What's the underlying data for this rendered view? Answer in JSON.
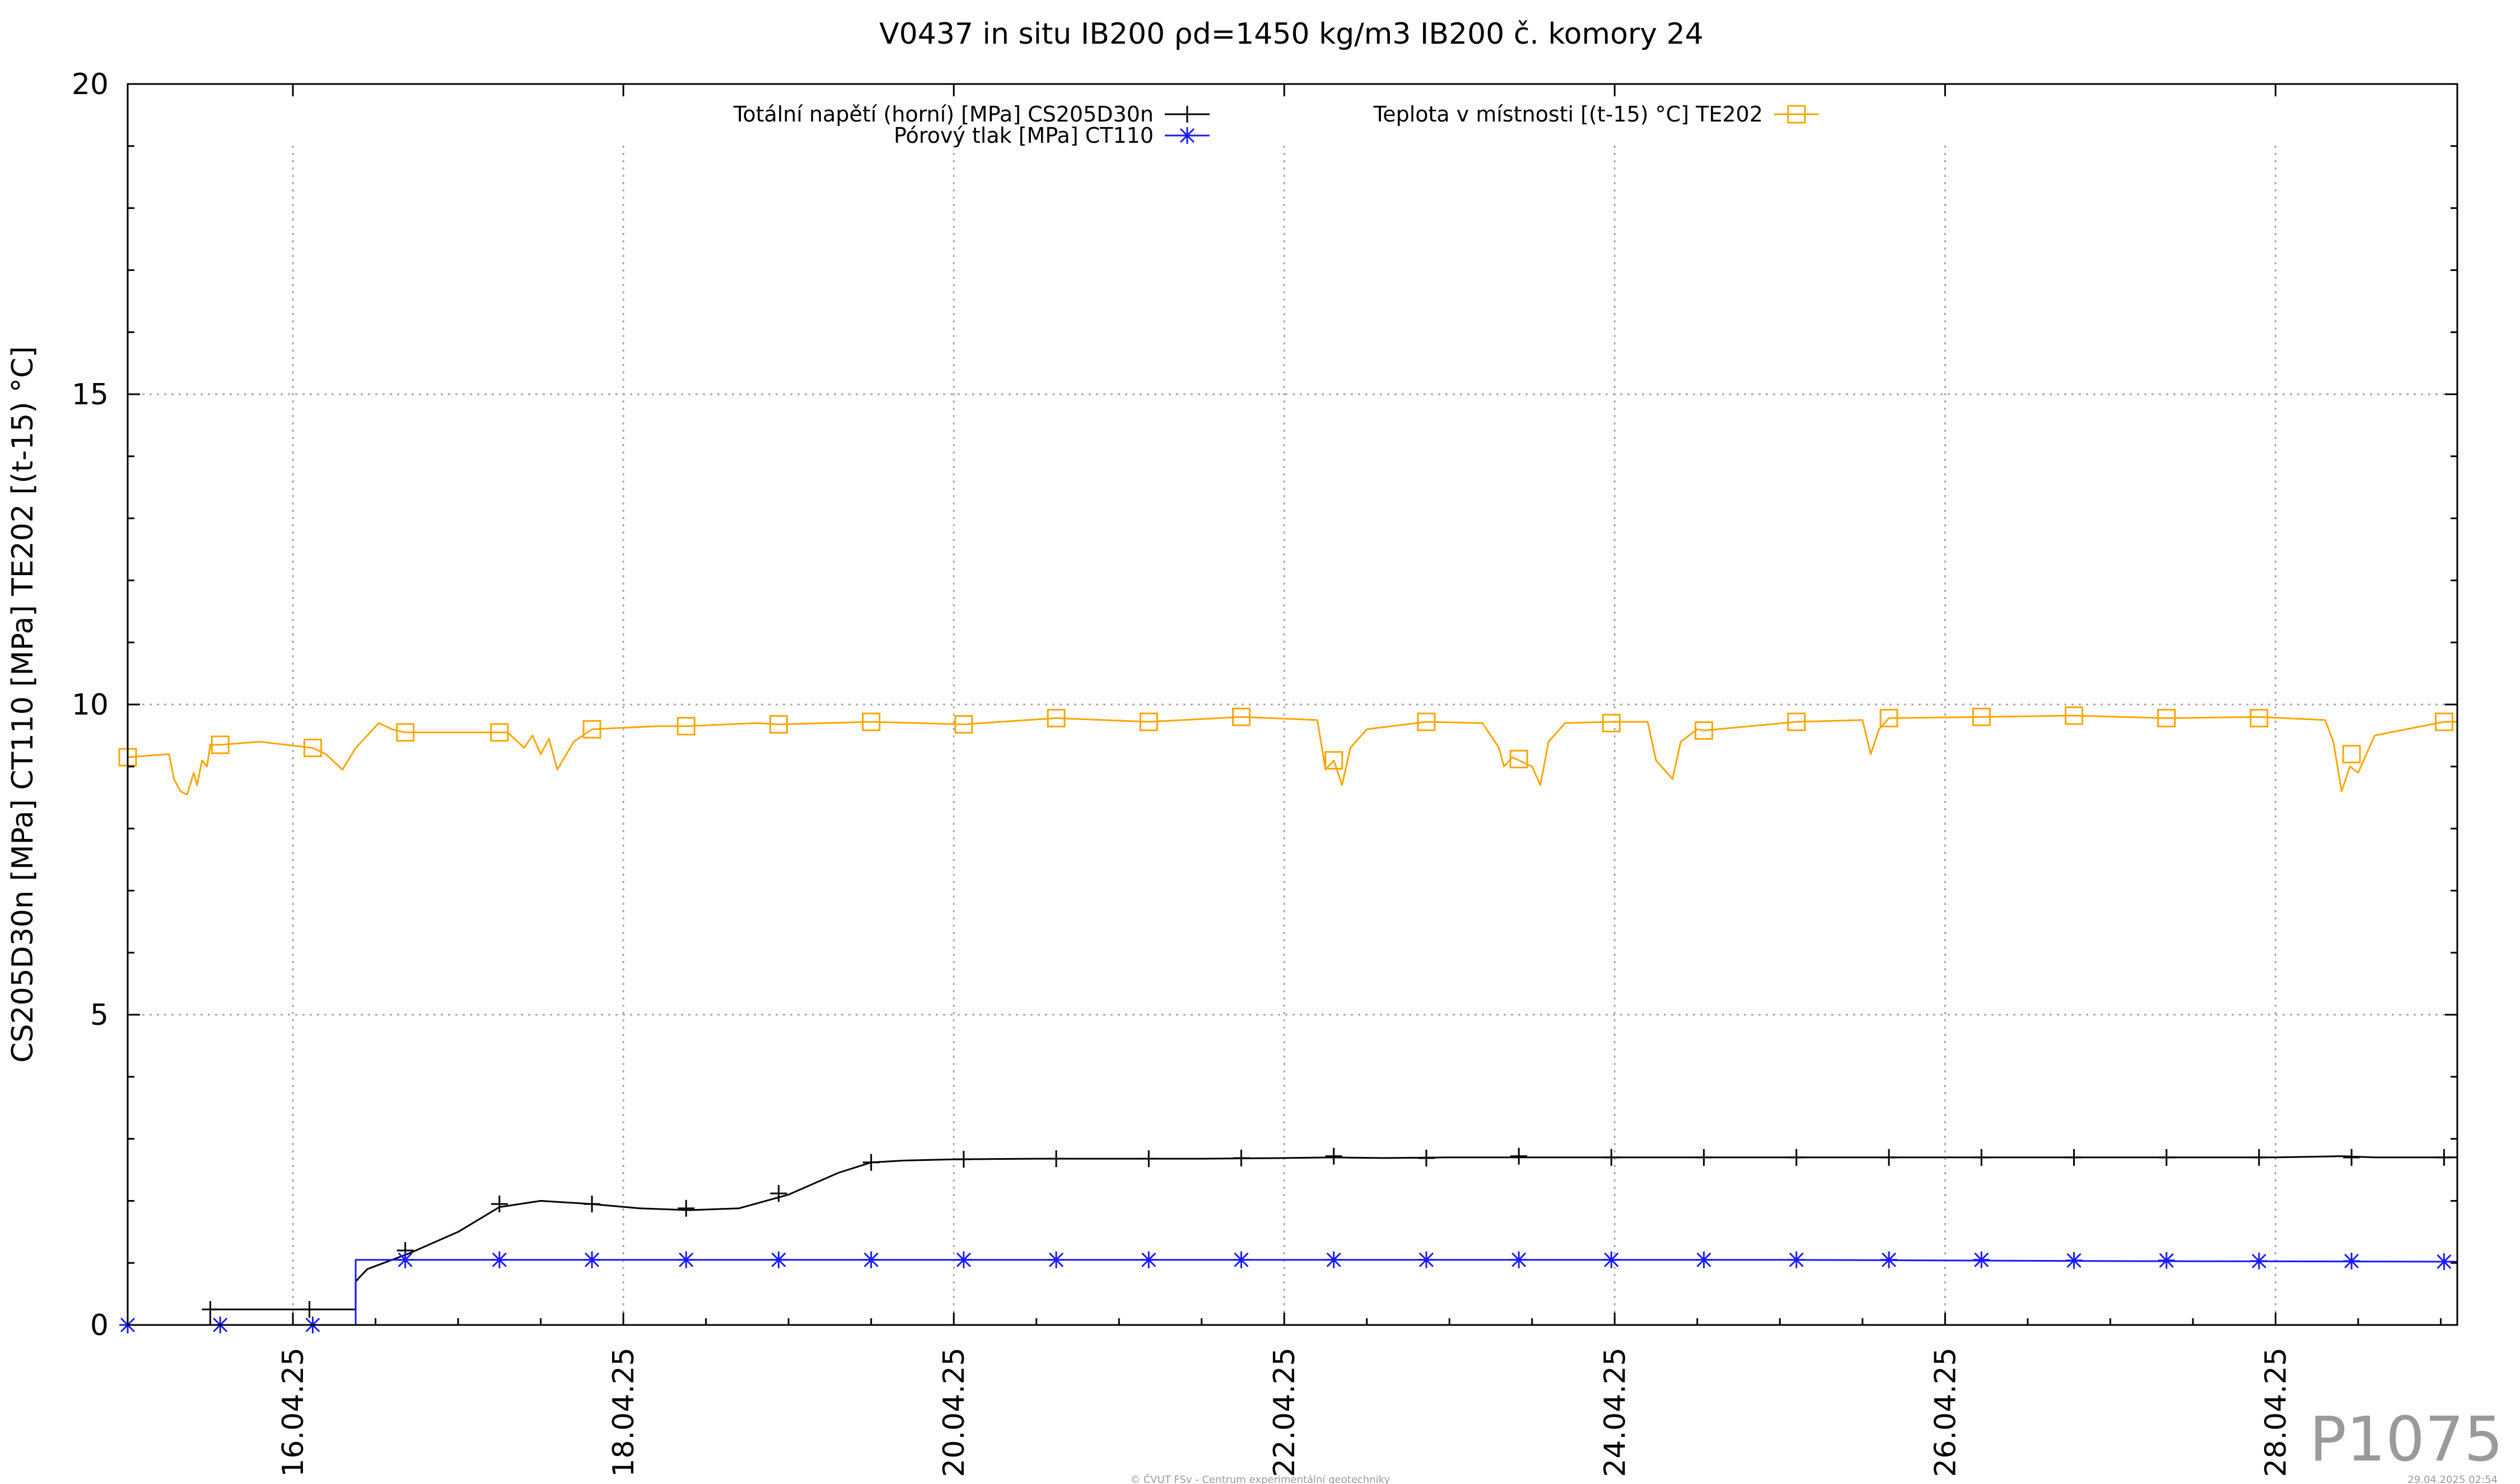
{
  "chart_data": {
    "type": "line",
    "title": "V0437 in situ IB200 ρd=1450 kg/m3 IB200 č. komory 24",
    "ylabel": "CS205D30n [MPa] CT110 [MPa] TE202 [(t-15) °C]",
    "xlabel": "",
    "ylim": [
      0,
      20
    ],
    "xlim": [
      0,
      14.1
    ],
    "y_ticks": [
      0,
      5,
      10,
      15,
      20
    ],
    "x_ticks": [
      {
        "x": 1.0,
        "label": "16.04.25"
      },
      {
        "x": 3.0,
        "label": "18.04.25"
      },
      {
        "x": 5.0,
        "label": "20.04.25"
      },
      {
        "x": 7.0,
        "label": "22.04.25"
      },
      {
        "x": 9.0,
        "label": "24.04.25"
      },
      {
        "x": 11.0,
        "label": "26.04.25"
      },
      {
        "x": 13.0,
        "label": "28.04.25"
      }
    ],
    "grid": true,
    "legend_position": "top",
    "series": [
      {
        "name": "Totální napětí (horní) [MPa] CS205D30n",
        "color": "#000000",
        "marker": "plus",
        "x": [
          0,
          0.5,
          0.5,
          1.38,
          1.38,
          1.45,
          1.7,
          2.0,
          2.25,
          2.5,
          2.8,
          3.1,
          3.4,
          3.7,
          4.0,
          4.3,
          4.5,
          4.7,
          5.0,
          5.5,
          6.0,
          6.5,
          7.0,
          7.3,
          7.6,
          8.0,
          8.5,
          9.0,
          9.5,
          10.0,
          10.5,
          11.0,
          11.5,
          12.0,
          12.5,
          13.0,
          13.4,
          13.6,
          14.1
        ],
        "y": [
          0,
          0,
          0.25,
          0.25,
          0.7,
          0.9,
          1.15,
          1.5,
          1.9,
          2.0,
          1.95,
          1.88,
          1.85,
          1.88,
          2.1,
          2.45,
          2.62,
          2.65,
          2.67,
          2.68,
          2.68,
          2.68,
          2.69,
          2.7,
          2.69,
          2.7,
          2.7,
          2.7,
          2.7,
          2.7,
          2.7,
          2.7,
          2.7,
          2.7,
          2.7,
          2.7,
          2.72,
          2.7,
          2.7
        ],
        "marker_x": [
          0.5,
          1.1,
          1.68,
          2.25,
          2.81,
          3.38,
          3.94,
          4.5,
          5.06,
          5.62,
          6.18,
          6.74,
          7.3,
          7.86,
          8.42,
          8.98,
          9.54,
          10.1,
          10.66,
          11.22,
          11.78,
          12.34,
          12.9,
          13.46,
          14.02
        ],
        "marker_y": [
          0.25,
          0.25,
          1.2,
          1.95,
          1.95,
          1.88,
          2.12,
          2.62,
          2.67,
          2.68,
          2.68,
          2.69,
          2.72,
          2.69,
          2.72,
          2.7,
          2.7,
          2.7,
          2.7,
          2.7,
          2.7,
          2.7,
          2.7,
          2.7,
          2.7
        ]
      },
      {
        "name": "Pórový tlak [MPa] CT110",
        "color": "#1a1aff",
        "marker": "asterisk",
        "x": [
          0,
          1.38,
          1.38,
          2.0,
          4.0,
          6.0,
          8.0,
          10.0,
          12.0,
          14.1
        ],
        "y": [
          0,
          0,
          1.05,
          1.05,
          1.05,
          1.05,
          1.05,
          1.05,
          1.03,
          1.02
        ],
        "marker_x": [
          0,
          0.56,
          1.12,
          1.68,
          2.25,
          2.81,
          3.38,
          3.94,
          4.5,
          5.06,
          5.62,
          6.18,
          6.74,
          7.3,
          7.86,
          8.42,
          8.98,
          9.54,
          10.1,
          10.66,
          11.22,
          11.78,
          12.34,
          12.9,
          13.46,
          14.02
        ],
        "marker_y": [
          0,
          0,
          0,
          1.05,
          1.05,
          1.05,
          1.05,
          1.05,
          1.05,
          1.05,
          1.05,
          1.05,
          1.05,
          1.05,
          1.05,
          1.05,
          1.05,
          1.05,
          1.05,
          1.05,
          1.05,
          1.04,
          1.04,
          1.03,
          1.03,
          1.02
        ]
      },
      {
        "name": "Teplota v místnosti [(t-15) °C] TE202",
        "color": "#ffa500",
        "marker": "square",
        "x": [
          0,
          0.25,
          0.28,
          0.32,
          0.36,
          0.4,
          0.42,
          0.45,
          0.48,
          0.5,
          0.56,
          0.8,
          1.12,
          1.2,
          1.3,
          1.38,
          1.45,
          1.52,
          1.6,
          1.68,
          2.0,
          2.3,
          2.4,
          2.45,
          2.5,
          2.55,
          2.6,
          2.7,
          2.81,
          3.2,
          3.38,
          3.8,
          3.94,
          4.5,
          5.06,
          5.62,
          6.18,
          6.74,
          7.2,
          7.25,
          7.3,
          7.35,
          7.4,
          7.5,
          7.86,
          8.2,
          8.3,
          8.33,
          8.38,
          8.42,
          8.5,
          8.55,
          8.6,
          8.7,
          8.98,
          9.2,
          9.25,
          9.35,
          9.4,
          9.5,
          9.54,
          10.1,
          10.5,
          10.55,
          10.6,
          10.66,
          11.22,
          11.78,
          12.34,
          12.9,
          13.3,
          13.35,
          13.4,
          13.45,
          13.5,
          13.55,
          13.6,
          14.02,
          14.1
        ],
        "y": [
          9.15,
          9.2,
          8.8,
          8.6,
          8.55,
          8.9,
          8.7,
          9.1,
          9.0,
          9.35,
          9.35,
          9.4,
          9.3,
          9.2,
          8.95,
          9.3,
          9.5,
          9.7,
          9.6,
          9.55,
          9.55,
          9.55,
          9.3,
          9.5,
          9.2,
          9.45,
          8.95,
          9.4,
          9.6,
          9.65,
          9.65,
          9.7,
          9.68,
          9.72,
          9.68,
          9.78,
          9.72,
          9.8,
          9.75,
          8.95,
          9.1,
          8.7,
          9.3,
          9.6,
          9.72,
          9.7,
          9.3,
          9.0,
          9.15,
          9.1,
          9.0,
          8.7,
          9.4,
          9.7,
          9.72,
          9.72,
          9.1,
          8.8,
          9.4,
          9.6,
          9.58,
          9.72,
          9.75,
          9.2,
          9.6,
          9.78,
          9.8,
          9.82,
          9.78,
          9.8,
          9.75,
          9.4,
          8.6,
          9.0,
          8.9,
          9.2,
          9.5,
          9.72,
          9.72
        ],
        "marker_x": [
          0,
          0.56,
          1.12,
          1.68,
          2.25,
          2.81,
          3.38,
          3.94,
          4.5,
          5.06,
          5.62,
          6.18,
          6.74,
          7.3,
          7.86,
          8.42,
          8.98,
          9.54,
          10.1,
          10.66,
          11.22,
          11.78,
          12.34,
          12.9,
          13.46,
          14.02
        ],
        "marker_y": [
          9.15,
          9.35,
          9.3,
          9.55,
          9.55,
          9.6,
          9.65,
          9.68,
          9.72,
          9.68,
          9.78,
          9.72,
          9.8,
          9.1,
          9.72,
          9.12,
          9.7,
          9.58,
          9.72,
          9.78,
          9.8,
          9.82,
          9.78,
          9.78,
          9.2,
          9.72
        ]
      }
    ]
  },
  "watermark": "P1075",
  "footer_center": "© ČVUT FSv - Centrum experimentální geotechniky",
  "footer_right": "29.04.2025 02:54"
}
